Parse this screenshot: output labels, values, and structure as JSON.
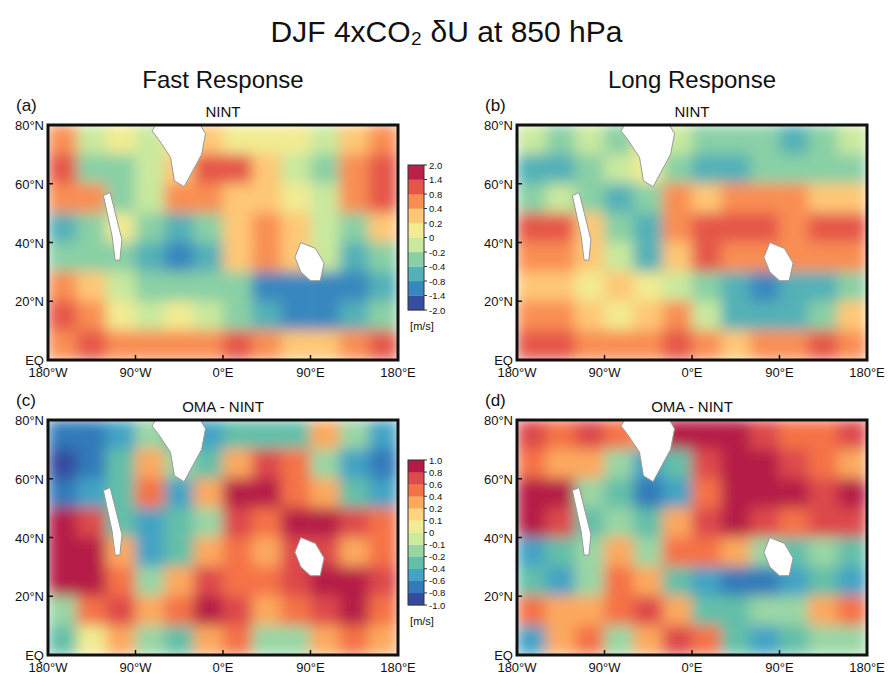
{
  "title": "DJF 4xCO₂ δU at 850 hPa",
  "column_titles": [
    "Fast Response",
    "Long Response"
  ],
  "chart_data": [
    {
      "type": "heatmap",
      "panel": "(a)",
      "title": "NINT",
      "x": [
        -165,
        -135,
        -105,
        -75,
        -45,
        -15,
        15,
        45,
        75,
        105,
        135,
        165
      ],
      "y": [
        75,
        65,
        55,
        45,
        35,
        25,
        15,
        5
      ],
      "values": [
        [
          0.4,
          -0.2,
          0,
          -0.2,
          0,
          0.2,
          0.1,
          0.1,
          0,
          -0.2,
          0.3,
          0.6
        ],
        [
          0.8,
          -0.3,
          -0.4,
          -0.2,
          0.2,
          1.0,
          0.8,
          0.2,
          -0.2,
          -0.4,
          0.6,
          1.0
        ],
        [
          0.4,
          0.6,
          -0.4,
          -0.2,
          0.4,
          0.6,
          0.2,
          0.2,
          0,
          -0.2,
          0.4,
          0.8
        ],
        [
          -0.6,
          -0.4,
          0,
          -0.4,
          -0.8,
          -0.4,
          0.2,
          0.4,
          0.2,
          -0.2,
          -0.4,
          0.2
        ],
        [
          -0.4,
          -0.4,
          -0.4,
          -0.8,
          -1.0,
          -0.6,
          0.2,
          0.4,
          0.2,
          -0.2,
          -0.8,
          -0.4
        ],
        [
          0.4,
          0.2,
          -0.2,
          -0.4,
          -0.4,
          -0.4,
          -0.4,
          -1.0,
          -1.2,
          -1.0,
          -1.0,
          -0.6
        ],
        [
          0.8,
          0.4,
          0,
          -0.2,
          0,
          -0.2,
          -0.4,
          -0.8,
          -1.2,
          -1.0,
          -0.8,
          -0.4
        ],
        [
          0.6,
          0.8,
          0.4,
          0.4,
          0.4,
          0.6,
          0.8,
          0.4,
          0.2,
          0.2,
          0.6,
          0.8
        ]
      ],
      "xlim": [
        -180,
        180
      ],
      "ylim": [
        0,
        80
      ],
      "xticks": [
        {
          "value": -180,
          "label": "180°W"
        },
        {
          "value": -90,
          "label": "90°W"
        },
        {
          "value": 0,
          "label": "0°E"
        },
        {
          "value": 90,
          "label": "90°E"
        },
        {
          "value": 180,
          "label": "180°E"
        }
      ],
      "yticks": [
        {
          "value": 0,
          "label": "EQ"
        },
        {
          "value": 20,
          "label": "20°N"
        },
        {
          "value": 40,
          "label": "40°N"
        },
        {
          "value": 60,
          "label": "60°N"
        },
        {
          "value": 80,
          "label": "80°N"
        }
      ],
      "colorbar": {
        "label": "[m/s]",
        "ticks": [
          {
            "value": -2,
            "label": "-2.0"
          },
          -1.4,
          -0.8,
          -0.4,
          -0.2,
          0,
          0.2,
          0.4,
          0.8,
          1.4,
          {
            "value": 2,
            "label": "2.0"
          }
        ]
      }
    },
    {
      "type": "heatmap",
      "panel": "(b)",
      "title": "NINT",
      "x": [
        -165,
        -135,
        -105,
        -75,
        -45,
        -15,
        15,
        45,
        75,
        105,
        135,
        165
      ],
      "y": [
        75,
        65,
        55,
        45,
        35,
        25,
        15,
        5
      ],
      "values": [
        [
          -0.2,
          -0.4,
          -0.2,
          -0.4,
          0,
          -0.2,
          -0.4,
          -0.4,
          -0.4,
          -0.6,
          -0.4,
          -0.2
        ],
        [
          -0.6,
          -0.6,
          -0.4,
          -0.2,
          0,
          -0.4,
          -0.8,
          -0.6,
          -0.4,
          -0.4,
          -0.4,
          -0.4
        ],
        [
          -0.4,
          -0.2,
          -0.4,
          -0.6,
          -0.4,
          0.4,
          0.2,
          0.4,
          0.6,
          0.4,
          0.2,
          0.2
        ],
        [
          0.8,
          0.8,
          0.2,
          -0.4,
          -0.6,
          0.6,
          0.8,
          1.0,
          0.8,
          0.6,
          1.0,
          1.2
        ],
        [
          0.6,
          0.4,
          0.2,
          -0.2,
          -0.6,
          0.2,
          0.8,
          0.6,
          0.6,
          0.4,
          0.4,
          0.4
        ],
        [
          0.2,
          0.2,
          0,
          0.2,
          0,
          -0.2,
          -0.4,
          -0.8,
          -1.0,
          -0.8,
          -0.6,
          -0.4
        ],
        [
          0.6,
          0.4,
          0.2,
          0,
          0.2,
          0.4,
          -0.2,
          -0.6,
          -0.8,
          -0.6,
          -0.4,
          0.2
        ],
        [
          0.8,
          0.8,
          0.6,
          0.4,
          0.6,
          0.8,
          0.6,
          0.2,
          0.4,
          0.6,
          0.8,
          0.6
        ]
      ],
      "xlim": [
        -180,
        180
      ],
      "ylim": [
        0,
        80
      ],
      "xticks": [
        {
          "value": -180,
          "label": "180°W"
        },
        {
          "value": -90,
          "label": "90°W"
        },
        {
          "value": 0,
          "label": "0°E"
        },
        {
          "value": 90,
          "label": "90°E"
        },
        {
          "value": 180,
          "label": "180°E"
        }
      ],
      "yticks": [
        {
          "value": 0,
          "label": "EQ"
        },
        {
          "value": 20,
          "label": "20°N"
        },
        {
          "value": 40,
          "label": "40°N"
        },
        {
          "value": 60,
          "label": "60°N"
        },
        {
          "value": 80,
          "label": "80°N"
        }
      ]
    },
    {
      "type": "heatmap",
      "panel": "(c)",
      "title": "OMA - NINT",
      "x": [
        -165,
        -135,
        -105,
        -75,
        -45,
        -15,
        15,
        45,
        75,
        105,
        135,
        165
      ],
      "y": [
        75,
        65,
        55,
        45,
        35,
        25,
        15,
        5
      ],
      "values": [
        [
          -0.8,
          -0.8,
          -0.6,
          -0.2,
          -0.4,
          -0.6,
          -0.4,
          -0.4,
          -0.4,
          0.2,
          -0.2,
          -0.6
        ],
        [
          -1.0,
          -0.8,
          -0.4,
          0.2,
          -0.2,
          -0.4,
          0.2,
          0.6,
          0.4,
          -0.2,
          -0.6,
          -0.8
        ],
        [
          -0.8,
          -0.6,
          -0.4,
          0.4,
          -0.6,
          0.2,
          0.8,
          1.0,
          0.4,
          0.2,
          -0.4,
          -0.6
        ],
        [
          0.8,
          0.6,
          -0.4,
          -0.6,
          -0.4,
          -0.2,
          0.6,
          0.4,
          0.8,
          1.0,
          0.6,
          0.4
        ],
        [
          1.0,
          0.8,
          0.2,
          -0.6,
          -0.4,
          0.2,
          0.4,
          0.2,
          0.6,
          0.6,
          0.2,
          0.4
        ],
        [
          0.8,
          1.0,
          0.4,
          -0.2,
          0.2,
          0.6,
          0.4,
          0.4,
          0.6,
          0.8,
          0.8,
          0.6
        ],
        [
          -0.2,
          0.4,
          0.6,
          0.2,
          0.4,
          0.8,
          0.6,
          0.2,
          0.4,
          0.6,
          0.8,
          0.4
        ],
        [
          -0.4,
          0,
          0.2,
          -0.2,
          -0.4,
          0.2,
          0.4,
          -0.2,
          -0.2,
          0.2,
          0.4,
          0.2
        ]
      ],
      "xlim": [
        -180,
        180
      ],
      "ylim": [
        0,
        80
      ],
      "xticks": [
        {
          "value": -180,
          "label": "180°W"
        },
        {
          "value": -90,
          "label": "90°W"
        },
        {
          "value": 0,
          "label": "0°E"
        },
        {
          "value": 90,
          "label": "90°E"
        },
        {
          "value": 180,
          "label": "180°E"
        }
      ],
      "yticks": [
        {
          "value": 0,
          "label": "EQ"
        },
        {
          "value": 20,
          "label": "20°N"
        },
        {
          "value": 40,
          "label": "40°N"
        },
        {
          "value": 60,
          "label": "60°N"
        },
        {
          "value": 80,
          "label": "80°N"
        }
      ],
      "colorbar": {
        "label": "[m/s]",
        "ticks": [
          {
            "value": -1,
            "label": "-1.0"
          },
          -0.8,
          -0.6,
          -0.4,
          -0.2,
          -0.1,
          0,
          0.1,
          0.2,
          0.4,
          0.6,
          0.8,
          {
            "value": 1,
            "label": "1.0"
          }
        ]
      }
    },
    {
      "type": "heatmap",
      "panel": "(d)",
      "title": "OMA - NINT",
      "x": [
        -165,
        -135,
        -105,
        -75,
        -45,
        -15,
        15,
        45,
        75,
        105,
        135,
        165
      ],
      "y": [
        75,
        65,
        55,
        45,
        35,
        25,
        15,
        5
      ],
      "values": [
        [
          0.6,
          0.4,
          0.6,
          0.4,
          0.2,
          0.8,
          1.0,
          0.8,
          0.6,
          0.4,
          0.4,
          0.6
        ],
        [
          0.4,
          0.2,
          0.2,
          -0.2,
          -0.6,
          -0.4,
          0.6,
          0.8,
          0.8,
          0.6,
          0.4,
          0.2
        ],
        [
          1.0,
          0.8,
          -0.2,
          -0.4,
          -0.8,
          -0.6,
          0.4,
          1.0,
          0.8,
          0.8,
          0.6,
          0.8
        ],
        [
          0.8,
          0.6,
          -0.4,
          -0.2,
          -0.4,
          0.2,
          0.6,
          0.8,
          0.6,
          0.4,
          0.6,
          0.6
        ],
        [
          -0.6,
          -0.4,
          -0.2,
          0.2,
          -0.2,
          0.4,
          0.4,
          0.2,
          -0.2,
          -0.4,
          -0.2,
          -0.4
        ],
        [
          -0.4,
          -0.6,
          -0.2,
          0.4,
          0.2,
          -0.4,
          -0.6,
          -0.8,
          -0.8,
          -0.6,
          -0.4,
          -0.6
        ],
        [
          0.4,
          0.2,
          0.2,
          0.4,
          0.6,
          0.2,
          -0.4,
          -0.4,
          -0.2,
          -0.2,
          0.2,
          0.4
        ],
        [
          -0.6,
          0.2,
          0.4,
          -0.2,
          0.2,
          0.6,
          0.4,
          -0.4,
          -0.6,
          -0.4,
          -0.2,
          -0.2
        ]
      ],
      "xlim": [
        -180,
        180
      ],
      "ylim": [
        0,
        80
      ],
      "xticks": [
        {
          "value": -180,
          "label": "180°W"
        },
        {
          "value": -90,
          "label": "90°W"
        },
        {
          "value": 0,
          "label": "0°E"
        },
        {
          "value": 90,
          "label": "90°E"
        },
        {
          "value": 180,
          "label": "180°E"
        }
      ],
      "yticks": [
        {
          "value": 0,
          "label": "EQ"
        },
        {
          "value": 20,
          "label": "20°N"
        },
        {
          "value": 40,
          "label": "40°N"
        },
        {
          "value": 60,
          "label": "60°N"
        },
        {
          "value": 80,
          "label": "80°N"
        }
      ]
    }
  ]
}
